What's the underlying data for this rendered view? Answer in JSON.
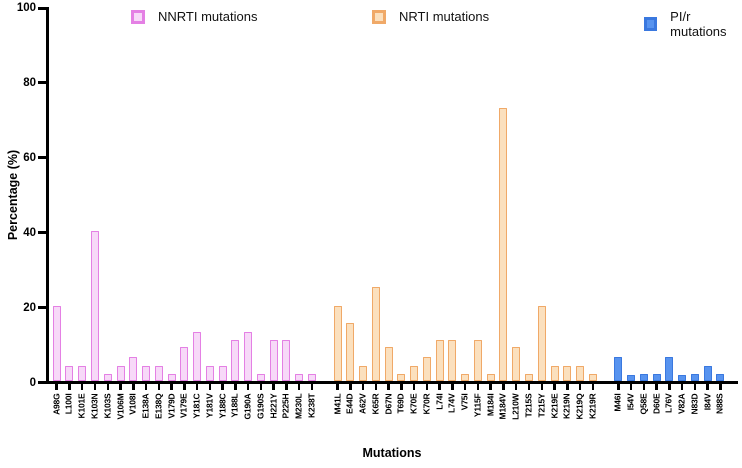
{
  "chart_data": {
    "type": "bar",
    "title": "",
    "xlabel": "Mutations",
    "ylabel": "Percentage (%)",
    "ylim": [
      0,
      100
    ],
    "yticks": [
      0,
      20,
      40,
      60,
      80,
      100
    ],
    "grid": false,
    "legend_position": "top",
    "groups": [
      {
        "name": "NNRTI mutations",
        "stroke": "#E480E4",
        "fill": "#F7D9F8",
        "categories": [
          "A98G",
          "L100I",
          "K101E",
          "K103N",
          "K103S",
          "V106M",
          "V108I",
          "E138A",
          "E138Q",
          "V179D",
          "V179E",
          "Y181C",
          "Y181V",
          "Y188C",
          "Y188L",
          "G190A",
          "G190S",
          "H221Y",
          "P225H",
          "M230L",
          "K238T"
        ],
        "values": [
          20,
          4,
          4,
          40,
          2,
          4,
          6.5,
          4,
          4,
          2,
          9,
          13,
          4,
          4,
          11,
          13,
          2,
          11,
          11,
          2,
          2
        ]
      },
      {
        "name": "NRTI mutations",
        "stroke": "#F0A968",
        "fill": "#FBE0BE",
        "categories": [
          "M41L",
          "E44D",
          "A62V",
          "K65R",
          "D67N",
          "T69D",
          "K70E",
          "K70R",
          "L74I",
          "L74V",
          "V75I",
          "Y115F",
          "M184I",
          "M184V",
          "L210W",
          "T215S",
          "T215Y",
          "K219E",
          "K219N",
          "K219Q",
          "K219R"
        ],
        "values": [
          20,
          15.5,
          4,
          25,
          9,
          2,
          4,
          6.5,
          11,
          11,
          2,
          11,
          2,
          73,
          9,
          2,
          20,
          4,
          4,
          4,
          2
        ]
      },
      {
        "name": "PI/r mutations",
        "stroke": "#3A78DF",
        "fill": "#5793EF",
        "categories": [
          "M46I",
          "I54V",
          "Q58E",
          "D60E",
          "L76V",
          "V82A",
          "N83D",
          "I84V",
          "N88S"
        ],
        "values": [
          6.5,
          1.5,
          2,
          2,
          6.5,
          1.5,
          2,
          4,
          2
        ]
      }
    ]
  }
}
